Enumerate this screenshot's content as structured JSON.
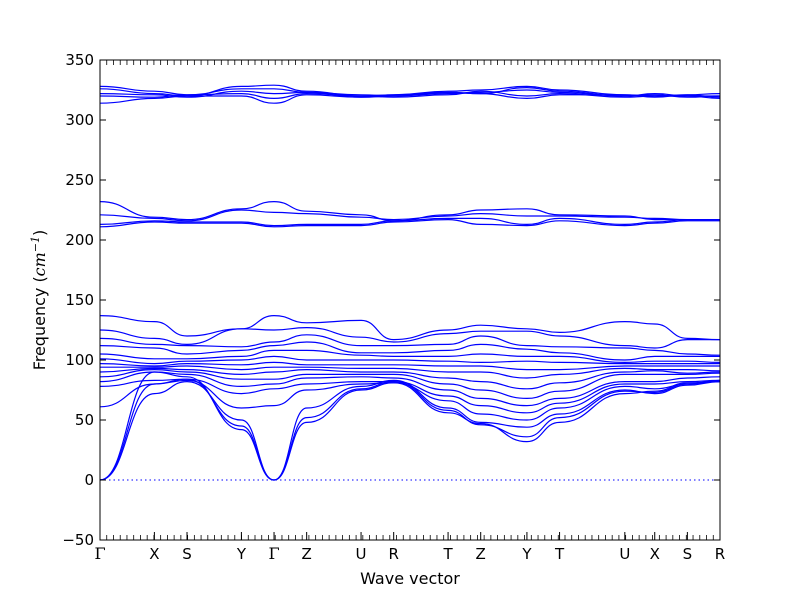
{
  "chart_data": {
    "type": "line",
    "title": "",
    "xlabel": "Wave vector",
    "ylabel": "Frequency",
    "ylabel_unit_base": "cm",
    "ylabel_unit_exp": "−1",
    "ylim": [
      -50,
      350
    ],
    "yticks": [
      -50,
      0,
      50,
      100,
      150,
      200,
      250,
      300,
      350
    ],
    "grid": false,
    "zero_line": 0,
    "band_color": "#0000ff",
    "high_symmetry_points": [
      {
        "label": "Γ",
        "x": 0.0
      },
      {
        "label": "X",
        "x": 1.0
      },
      {
        "label": "S",
        "x": 1.6
      },
      {
        "label": "Y",
        "x": 2.6
      },
      {
        "label": "Γ",
        "x": 3.2
      },
      {
        "label": "Z",
        "x": 3.8
      },
      {
        "label": "U",
        "x": 4.8
      },
      {
        "label": "R",
        "x": 5.4
      },
      {
        "label": "T",
        "x": 6.4
      },
      {
        "label": "Z",
        "x": 7.0
      },
      {
        "label": "Y",
        "x": 7.85
      },
      {
        "label": "T",
        "x": 8.45
      },
      {
        "label": "U",
        "x": 9.65
      },
      {
        "label": "X",
        "x": 10.2
      },
      {
        "label": "S",
        "x": 10.8
      },
      {
        "label": "R",
        "x": 11.4
      }
    ],
    "xlim": [
      0,
      11.4
    ],
    "series": [
      {
        "x": [
          0,
          1.0,
          1.6,
          2.6,
          3.2,
          3.8,
          4.8,
          5.4,
          6.4,
          7.0,
          7.85,
          8.45,
          9.65,
          10.2,
          10.8,
          11.4
        ],
        "values": [
          328,
          324,
          321,
          326,
          326,
          323,
          321,
          320,
          323,
          322,
          327,
          324,
          320,
          322,
          320,
          320
        ]
      },
      {
        "x": [
          0,
          1.0,
          1.6,
          2.6,
          3.2,
          3.8,
          4.8,
          5.4,
          6.4,
          7.0,
          7.85,
          8.45,
          9.65,
          10.2,
          10.8,
          11.4
        ],
        "values": [
          326,
          322,
          320,
          328,
          329,
          324,
          320,
          321,
          324,
          325,
          328,
          325,
          321,
          320,
          321,
          322
        ]
      },
      {
        "x": [
          0,
          1.0,
          1.6,
          2.6,
          3.2,
          3.8,
          4.8,
          5.4,
          6.4,
          7.0,
          7.85,
          8.45,
          9.65,
          10.2,
          10.8,
          11.4
        ],
        "values": [
          322,
          321,
          319,
          324,
          322,
          323,
          319,
          320,
          322,
          323,
          325,
          323,
          320,
          321,
          319,
          320
        ]
      },
      {
        "x": [
          0,
          1.0,
          1.6,
          2.6,
          3.2,
          3.8,
          4.8,
          5.4,
          6.4,
          7.0,
          7.85,
          8.45,
          9.65,
          10.2,
          10.8,
          11.4
        ],
        "values": [
          320,
          319,
          321,
          322,
          318,
          322,
          320,
          319,
          321,
          324,
          320,
          322,
          319,
          320,
          320,
          318
        ]
      },
      {
        "x": [
          0,
          1.0,
          1.6,
          2.6,
          3.2,
          3.8,
          4.8,
          5.4,
          6.4,
          7.0,
          7.85,
          8.45,
          9.65,
          10.2,
          10.8,
          11.4
        ],
        "values": [
          314,
          318,
          320,
          320,
          314,
          321,
          319,
          321,
          323,
          322,
          318,
          321,
          321,
          319,
          321,
          319
        ]
      },
      {
        "x": [
          0,
          1.0,
          1.6,
          2.6,
          3.2,
          3.8,
          4.8,
          5.4,
          6.4,
          7.0,
          7.85,
          8.45,
          9.65,
          10.2,
          10.8,
          11.4
        ],
        "values": [
          232,
          219,
          217,
          226,
          232,
          224,
          221,
          216,
          221,
          225,
          226,
          221,
          220,
          217,
          217,
          217
        ]
      },
      {
        "x": [
          0,
          1.0,
          1.6,
          2.6,
          3.2,
          3.8,
          4.8,
          5.4,
          6.4,
          7.0,
          7.85,
          8.45,
          9.65,
          10.2,
          10.8,
          11.4
        ],
        "values": [
          221,
          218,
          216,
          225,
          223,
          222,
          219,
          217,
          220,
          222,
          220,
          220,
          219,
          218,
          217,
          217
        ]
      },
      {
        "x": [
          0,
          1.0,
          1.6,
          2.6,
          3.2,
          3.8,
          4.8,
          5.4,
          6.4,
          7.0,
          7.85,
          8.45,
          9.65,
          10.2,
          10.8,
          11.4
        ],
        "values": [
          213,
          216,
          215,
          215,
          212,
          213,
          213,
          216,
          218,
          218,
          213,
          218,
          213,
          215,
          217,
          217
        ]
      },
      {
        "x": [
          0,
          1.0,
          1.6,
          2.6,
          3.2,
          3.8,
          4.8,
          5.4,
          6.4,
          7.0,
          7.85,
          8.45,
          9.65,
          10.2,
          10.8,
          11.4
        ],
        "values": [
          211,
          215,
          214,
          214,
          211,
          212,
          212,
          215,
          217,
          213,
          212,
          216,
          212,
          214,
          216,
          216
        ]
      },
      {
        "x": [
          0,
          1.0,
          1.6,
          2.6,
          3.2,
          3.8,
          4.8,
          5.4,
          6.4,
          7.0,
          7.85,
          8.45,
          9.65,
          10.2,
          10.8,
          11.4
        ],
        "values": [
          137,
          132,
          120,
          126,
          137,
          131,
          133,
          117,
          125,
          129,
          126,
          123,
          132,
          130,
          118,
          117
        ]
      },
      {
        "x": [
          0,
          1.0,
          1.6,
          2.6,
          3.2,
          3.8,
          4.8,
          5.4,
          6.4,
          7.0,
          7.85,
          8.45,
          9.65,
          10.2,
          10.8,
          11.4
        ],
        "values": [
          125,
          118,
          113,
          126,
          125,
          127,
          119,
          115,
          122,
          124,
          124,
          120,
          112,
          110,
          117,
          117
        ]
      },
      {
        "x": [
          0,
          1.0,
          1.6,
          2.6,
          3.2,
          3.8,
          4.8,
          5.4,
          6.4,
          7.0,
          7.85,
          8.45,
          9.65,
          10.2,
          10.8,
          11.4
        ],
        "values": [
          118,
          113,
          112,
          111,
          115,
          121,
          112,
          112,
          113,
          120,
          112,
          111,
          110,
          108,
          105,
          104
        ]
      },
      {
        "x": [
          0,
          1.0,
          1.6,
          2.6,
          3.2,
          3.8,
          4.8,
          5.4,
          6.4,
          7.0,
          7.85,
          8.45,
          9.65,
          10.2,
          10.8,
          11.4
        ],
        "values": [
          112,
          110,
          105,
          108,
          112,
          115,
          106,
          106,
          108,
          113,
          109,
          106,
          100,
          103,
          103,
          103
        ]
      },
      {
        "x": [
          0,
          1.0,
          1.6,
          2.6,
          3.2,
          3.8,
          4.8,
          5.4,
          6.4,
          7.0,
          7.85,
          8.45,
          9.65,
          10.2,
          10.8,
          11.4
        ],
        "values": [
          105,
          101,
          101,
          103,
          108,
          108,
          104,
          103,
          103,
          105,
          103,
          103,
          98,
          99,
          99,
          98
        ]
      },
      {
        "x": [
          0,
          1.0,
          1.6,
          2.6,
          3.2,
          3.8,
          4.8,
          5.4,
          6.4,
          7.0,
          7.85,
          8.45,
          9.65,
          10.2,
          10.8,
          11.4
        ],
        "values": [
          101,
          97,
          99,
          100,
          103,
          100,
          100,
          100,
          99,
          98,
          99,
          98,
          97,
          97,
          97,
          97
        ]
      },
      {
        "x": [
          0,
          1.0,
          1.6,
          2.6,
          3.2,
          3.8,
          4.8,
          5.4,
          6.4,
          7.0,
          7.85,
          8.45,
          9.65,
          10.2,
          10.8,
          11.4
        ],
        "values": [
          97,
          95,
          97,
          96,
          98,
          96,
          96,
          96,
          95,
          95,
          92,
          92,
          95,
          95,
          95,
          95
        ]
      },
      {
        "x": [
          0,
          1.0,
          1.6,
          2.6,
          3.2,
          3.8,
          4.8,
          5.4,
          6.4,
          7.0,
          7.85,
          8.45,
          9.65,
          10.2,
          10.8,
          11.4
        ],
        "values": [
          94,
          94,
          95,
          92,
          94,
          94,
          93,
          93,
          90,
          90,
          85,
          88,
          93,
          92,
          92,
          91
        ]
      },
      {
        "x": [
          0,
          1.0,
          1.6,
          2.6,
          3.2,
          3.8,
          4.8,
          5.4,
          6.4,
          7.0,
          7.85,
          8.45,
          9.65,
          10.2,
          10.8,
          11.4
        ],
        "values": [
          90,
          93,
          92,
          88,
          90,
          92,
          90,
          90,
          85,
          82,
          76,
          81,
          90,
          91,
          89,
          90
        ]
      },
      {
        "x": [
          0,
          1.0,
          1.6,
          2.6,
          3.2,
          3.8,
          4.8,
          5.4,
          6.4,
          7.0,
          7.85,
          8.45,
          9.65,
          10.2,
          10.8,
          11.4
        ],
        "values": [
          86,
          92,
          90,
          84,
          84,
          88,
          88,
          88,
          80,
          75,
          68,
          74,
          88,
          88,
          88,
          89
        ]
      },
      {
        "x": [
          0,
          1.0,
          1.6,
          2.6,
          3.2,
          3.8,
          4.8,
          5.4,
          6.4,
          7.0,
          7.85,
          8.45,
          9.65,
          10.2,
          10.8,
          11.4
        ],
        "values": [
          82,
          90,
          88,
          78,
          80,
          85,
          86,
          85,
          75,
          68,
          62,
          68,
          82,
          82,
          85,
          86
        ]
      },
      {
        "x": [
          0,
          1.0,
          1.6,
          2.6,
          3.2,
          3.8,
          4.8,
          5.4,
          6.4,
          7.0,
          7.85,
          8.45,
          9.65,
          10.2,
          10.8,
          11.4
        ],
        "values": [
          78,
          83,
          84,
          72,
          76,
          80,
          82,
          82,
          70,
          62,
          56,
          64,
          80,
          80,
          82,
          83
        ]
      },
      {
        "x": [
          0,
          1.0,
          1.6,
          2.6,
          3.2,
          3.8,
          4.8,
          5.4,
          6.4,
          7.0,
          7.85,
          8.45,
          9.65,
          10.2,
          10.8,
          11.4
        ],
        "values": [
          61,
          80,
          83,
          60,
          62,
          75,
          80,
          81,
          66,
          55,
          50,
          60,
          78,
          76,
          80,
          82
        ]
      },
      {
        "x": [
          0,
          1.0,
          1.6,
          2.6,
          3.2,
          3.8,
          4.8,
          5.4,
          6.4,
          7.0,
          7.85,
          8.45,
          9.65,
          10.2,
          10.8,
          11.4
        ],
        "values": [
          0,
          72,
          82,
          50,
          0,
          60,
          78,
          83,
          60,
          48,
          44,
          55,
          75,
          72,
          79,
          82
        ]
      },
      {
        "x": [
          0,
          1.0,
          1.6,
          2.6,
          3.2,
          3.8,
          4.8,
          5.4,
          6.4,
          7.0,
          7.85,
          8.45,
          9.65,
          10.2,
          10.8,
          11.4
        ],
        "values": [
          0,
          80,
          84,
          45,
          0,
          52,
          76,
          82,
          58,
          46,
          36,
          52,
          74,
          73,
          80,
          83
        ]
      },
      {
        "x": [
          0,
          1.0,
          1.6,
          2.6,
          3.2,
          3.8,
          4.8,
          5.4,
          6.4,
          7.0,
          7.85,
          8.45,
          9.65,
          10.2,
          10.8,
          11.4
        ],
        "values": [
          0,
          90,
          86,
          42,
          0,
          48,
          75,
          81,
          56,
          47,
          32,
          48,
          72,
          74,
          81,
          82
        ]
      }
    ]
  }
}
